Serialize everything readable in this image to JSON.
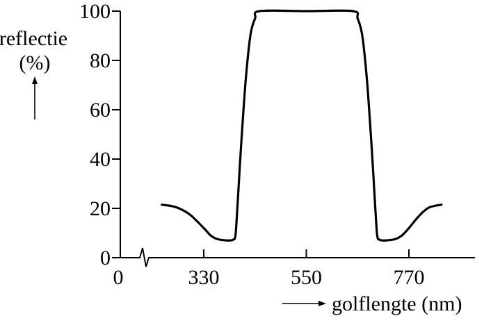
{
  "chart_data": {
    "type": "line",
    "title": "",
    "xlabel": "golflengte (nm)",
    "ylabel": "reflectie",
    "ylabel_unit": "(%)",
    "x_axis_break": true,
    "x_origin_label": "0",
    "xlim": [
      220,
      820
    ],
    "ylim": [
      0,
      100
    ],
    "xticks": [
      330,
      550,
      770
    ],
    "xtick_labels": [
      "330",
      "550",
      "770"
    ],
    "yticks": [
      0,
      20,
      40,
      60,
      80,
      100
    ],
    "ytick_labels": [
      "0",
      "20",
      "40",
      "60",
      "80",
      "100"
    ],
    "grid": false,
    "line_color": "#000000",
    "series": [
      {
        "x": [
          240,
          270,
          300,
          330,
          345,
          360,
          378,
          387,
          393,
          398,
          402,
          410,
          420,
          430,
          440,
          450,
          550,
          650,
          660,
          670,
          680,
          690,
          698,
          702,
          707,
          713,
          722,
          740,
          755,
          770,
          785,
          800,
          815,
          840
        ],
        "y": [
          21.5,
          20.5,
          17.5,
          12,
          9,
          7.5,
          7,
          7,
          7.3,
          9,
          20,
          45,
          72,
          90,
          97,
          100,
          100,
          100,
          97,
          90,
          72,
          45,
          20,
          9,
          7.3,
          7,
          7,
          7.5,
          9,
          12,
          15.5,
          18.5,
          20.5,
          21.5
        ]
      }
    ]
  }
}
